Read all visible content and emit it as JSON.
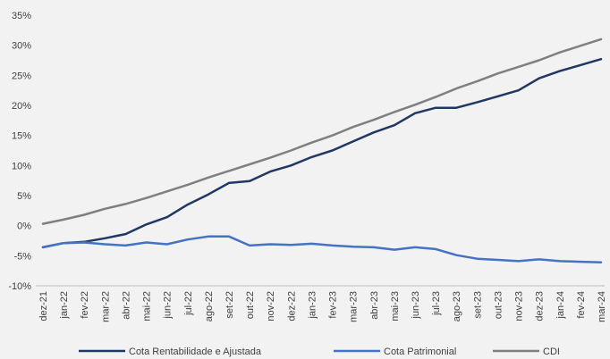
{
  "chart_data": {
    "type": "line",
    "categories": [
      "dez-21",
      "jan-22",
      "fev-22",
      "mar-22",
      "abr-22",
      "mai-22",
      "jun-22",
      "jul-22",
      "ago-22",
      "set-22",
      "out-22",
      "nov-22",
      "dez-22",
      "jan-23",
      "fev-23",
      "mar-23",
      "abr-23",
      "mai-23",
      "jun-23",
      "jul-23",
      "ago-23",
      "set-23",
      "out-23",
      "nov-23",
      "dez-23",
      "jan-24",
      "fev-24",
      "mar-24"
    ],
    "y_ticks": [
      "-10%",
      "-5%",
      "0%",
      "5%",
      "10%",
      "15%",
      "20%",
      "25%",
      "30%",
      "35%"
    ],
    "ylim": [
      -10,
      35
    ],
    "grid": false,
    "legend_position": "bottom",
    "series": [
      {
        "name": "Cota Rentabilidade e Ajustada",
        "color": "#1f3864",
        "values": [
          -3.6,
          -2.9,
          -2.7,
          -2.1,
          -1.4,
          0.2,
          1.4,
          3.5,
          5.2,
          7.1,
          7.4,
          9.0,
          10.0,
          11.4,
          12.5,
          14.0,
          15.5,
          16.7,
          18.7,
          19.6,
          19.6,
          20.5,
          21.5,
          22.5,
          24.5,
          25.7,
          26.7,
          27.7
        ]
      },
      {
        "name": "Cota Patrimonial",
        "color": "#4472c4",
        "values": [
          -3.6,
          -2.9,
          -2.8,
          -3.1,
          -3.3,
          -2.8,
          -3.1,
          -2.3,
          -1.8,
          -1.8,
          -3.3,
          -3.1,
          -3.2,
          -3.0,
          -3.3,
          -3.5,
          -3.6,
          -4.0,
          -3.6,
          -3.9,
          -4.9,
          -5.5,
          -5.7,
          -5.9,
          -5.6,
          -5.9,
          -6.0,
          -6.1
        ]
      },
      {
        "name": "CDI",
        "color": "#808080",
        "values": [
          0.3,
          1.0,
          1.8,
          2.8,
          3.6,
          4.6,
          5.7,
          6.8,
          8.0,
          9.1,
          10.2,
          11.3,
          12.5,
          13.8,
          15.0,
          16.4,
          17.6,
          18.9,
          20.1,
          21.4,
          22.8,
          24.0,
          25.3,
          26.4,
          27.5,
          28.8,
          29.9,
          31.0
        ]
      }
    ]
  }
}
